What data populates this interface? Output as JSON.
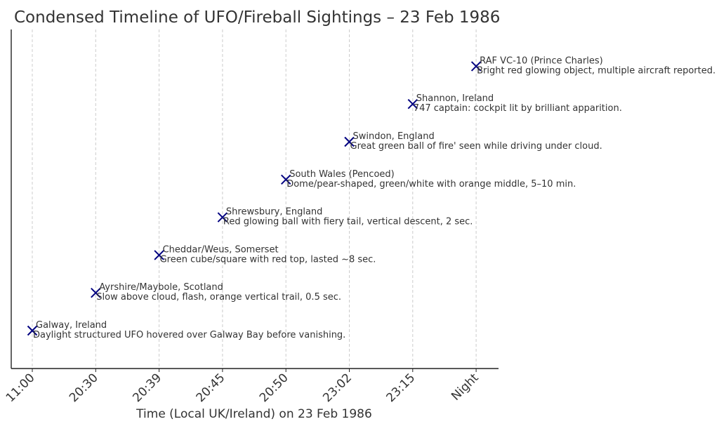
{
  "chart_data": {
    "type": "scatter",
    "title": "Condensed Timeline of UFO/Fireball Sightings – 23 Feb 1986",
    "xlabel": "Time (Local UK/Ireland) on 23 Feb 1986",
    "ylabel": "",
    "categories": [
      "11:00",
      "20:30",
      "20:39",
      "20:45",
      "20:50",
      "23:02",
      "23:15",
      "Night"
    ],
    "grid": "vertical",
    "marker": "x",
    "marker_color": "#000080",
    "points": [
      {
        "x": "11:00",
        "y": 1,
        "location": "Galway, Ireland",
        "description": "Daylight structured UFO hovered over Galway Bay before vanishing."
      },
      {
        "x": "20:30",
        "y": 2,
        "location": "Ayrshire/Maybole, Scotland",
        "description": "Slow above cloud, flash, orange vertical trail, 0.5 sec."
      },
      {
        "x": "20:39",
        "y": 3,
        "location": "Cheddar/Weus, Somerset",
        "description": "Green cube/square with red top, lasted ~8 sec."
      },
      {
        "x": "20:45",
        "y": 4,
        "location": "Shrewsbury, England",
        "description": "Red glowing ball with fiery tail, vertical descent, 2 sec."
      },
      {
        "x": "20:50",
        "y": 5,
        "location": "South Wales (Pencoed)",
        "description": "Dome/pear-shaped, green/white with orange middle, 5–10 min."
      },
      {
        "x": "23:02",
        "y": 6,
        "location": "Swindon, England",
        "description": "Great green ball of fire' seen while driving under cloud."
      },
      {
        "x": "23:15",
        "y": 7,
        "location": "Shannon, Ireland",
        "description": "747 captain: cockpit lit by brilliant apparition."
      },
      {
        "x": "Night",
        "y": 8,
        "location": "RAF VC-10 (Prince Charles)",
        "description": "Bright red glowing object, multiple aircraft reported."
      }
    ]
  }
}
